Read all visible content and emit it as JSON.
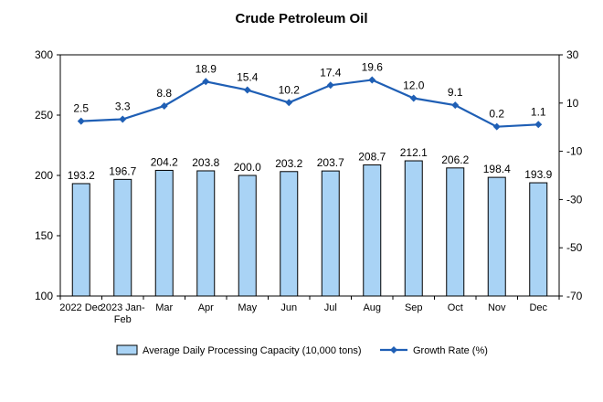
{
  "chart_data": {
    "type": "bar",
    "title": "Crude Petroleum Oil",
    "categories": [
      [
        "2022 Dec"
      ],
      [
        "2023 Jan-",
        "Feb"
      ],
      [
        "Mar"
      ],
      [
        "Apr"
      ],
      [
        "May"
      ],
      [
        "Jun"
      ],
      [
        "Jul"
      ],
      [
        "Aug"
      ],
      [
        "Sep"
      ],
      [
        "Oct"
      ],
      [
        "Nov"
      ],
      [
        "Dec"
      ]
    ],
    "series": [
      {
        "name": "Average Daily Processing Capacity (10,000 tons)",
        "type": "bar",
        "axis": "left",
        "color": "#a9d3f5",
        "edge_color": "#000000",
        "values": [
          193.2,
          196.7,
          204.2,
          203.8,
          200.0,
          203.2,
          203.7,
          208.7,
          212.1,
          206.2,
          198.4,
          193.9
        ],
        "labels": [
          "193.2",
          "196.7",
          "204.2",
          "203.8",
          "200.0",
          "203.2",
          "203.7",
          "208.7",
          "212.1",
          "206.2",
          "198.4",
          "193.9"
        ]
      },
      {
        "name": "Growth Rate (%)",
        "type": "line",
        "axis": "right",
        "color": "#1f5fb5",
        "marker": "diamond",
        "values": [
          2.5,
          3.3,
          8.8,
          18.9,
          15.4,
          10.2,
          17.4,
          19.6,
          12.0,
          9.1,
          0.2,
          1.1
        ],
        "labels": [
          "2.5",
          "3.3",
          "8.8",
          "18.9",
          "15.4",
          "10.2",
          "17.4",
          "19.6",
          "12.0",
          "9.1",
          "0.2",
          "1.1"
        ]
      }
    ],
    "y_left": {
      "min": 100,
      "max": 300,
      "ticks": [
        100,
        150,
        200,
        250,
        300
      ]
    },
    "y_right": {
      "min": -70,
      "max": 30,
      "ticks": [
        -70,
        -50,
        -30,
        -10,
        10,
        30
      ]
    },
    "legend_position": "bottom",
    "grid": false
  }
}
